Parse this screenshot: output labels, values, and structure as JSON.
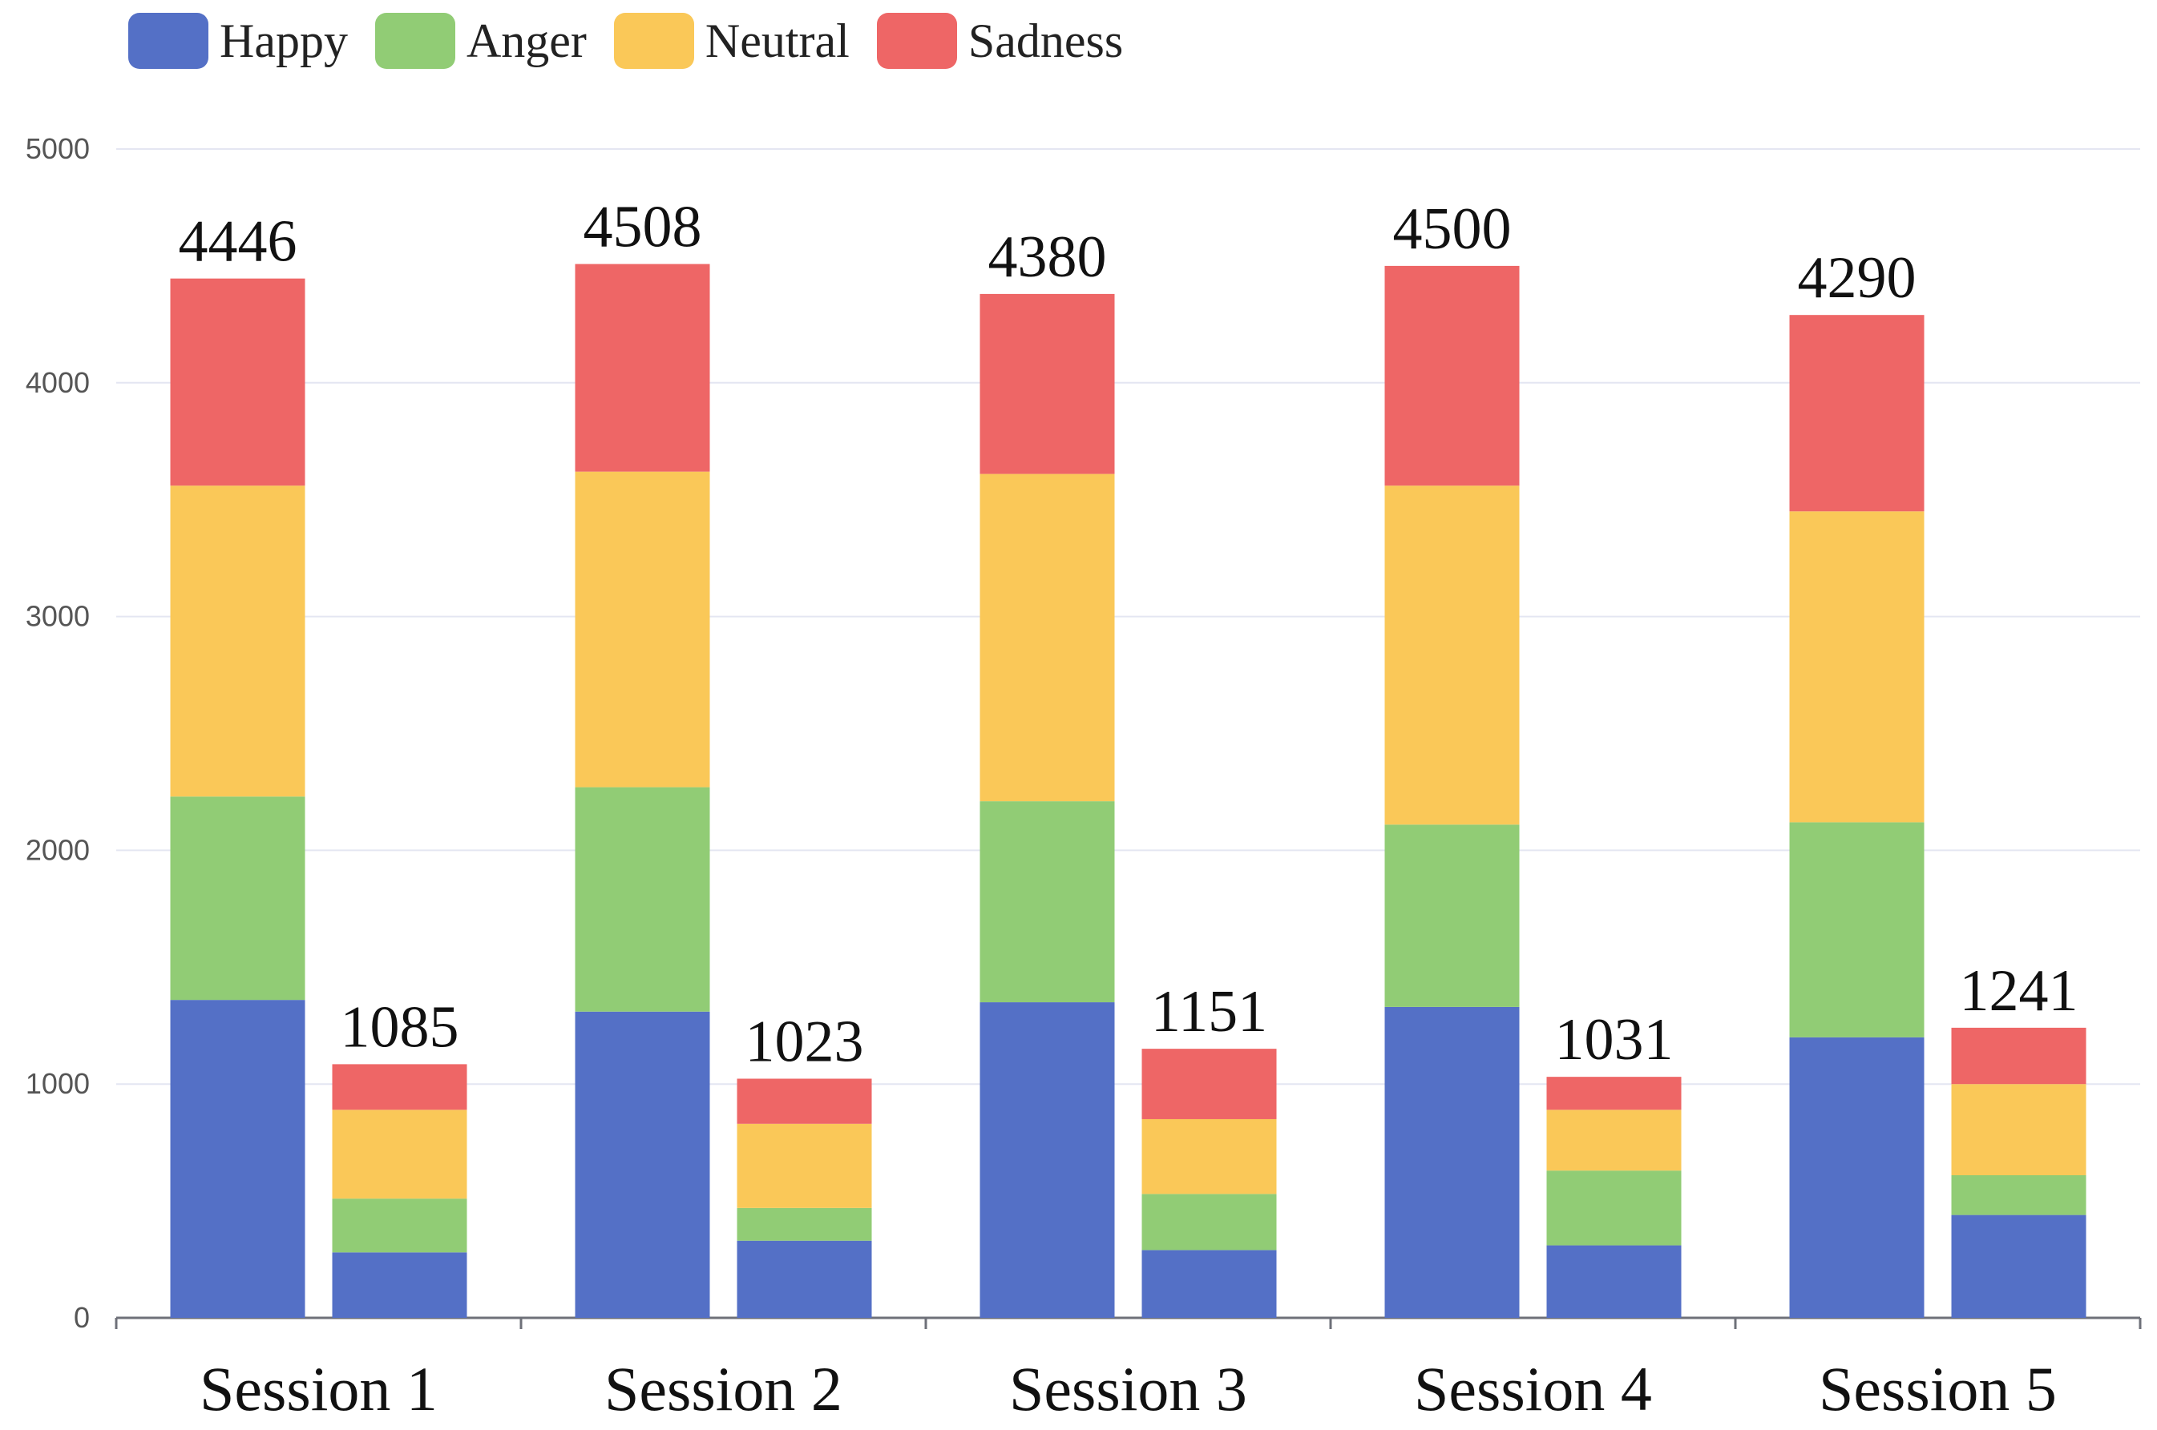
{
  "chart_data": {
    "type": "bar",
    "stacked": true,
    "categories": [
      "Session 1",
      "Session 2",
      "Session 3",
      "Session 4",
      "Session 5"
    ],
    "groups": [
      "left",
      "right"
    ],
    "series": [
      {
        "name": "Happy",
        "color": "#5470c6",
        "values": [
          [
            1360,
            280
          ],
          [
            1310,
            330
          ],
          [
            1350,
            290
          ],
          [
            1330,
            310
          ],
          [
            1200,
            440
          ]
        ]
      },
      {
        "name": "Anger",
        "color": "#91cc75",
        "values": [
          [
            870,
            230
          ],
          [
            960,
            140
          ],
          [
            860,
            240
          ],
          [
            780,
            320
          ],
          [
            920,
            170
          ]
        ]
      },
      {
        "name": "Neutral",
        "color": "#fac858",
        "values": [
          [
            1330,
            380
          ],
          [
            1350,
            360
          ],
          [
            1400,
            320
          ],
          [
            1450,
            260
          ],
          [
            1330,
            390
          ]
        ]
      },
      {
        "name": "Sadness",
        "color": "#ee6666",
        "values": [
          [
            886,
            195
          ],
          [
            888,
            193
          ],
          [
            770,
            301
          ],
          [
            940,
            141
          ],
          [
            840,
            241
          ]
        ]
      }
    ],
    "totals": [
      [
        4446,
        1085
      ],
      [
        4508,
        1023
      ],
      [
        4380,
        1151
      ],
      [
        4500,
        1031
      ],
      [
        4290,
        1241
      ]
    ],
    "total_labels": [
      [
        "4446",
        "1085"
      ],
      [
        "4508",
        "1023"
      ],
      [
        "4380",
        "1151"
      ],
      [
        "4500",
        "1031"
      ],
      [
        "4290",
        "1241"
      ]
    ],
    "yticks": [
      "0",
      "1000",
      "2000",
      "3000",
      "4000",
      "5000"
    ],
    "ylim": [
      0,
      5000
    ],
    "title": "",
    "xlabel": "",
    "ylabel": "",
    "legend": "top-left",
    "grid": true
  }
}
